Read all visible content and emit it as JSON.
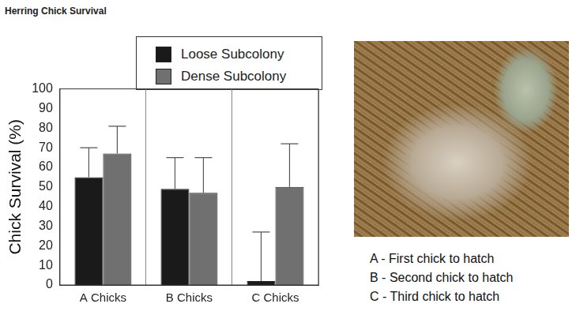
{
  "chart_data": {
    "type": "bar",
    "title": "Herring Chick Survival",
    "y_label": "Chick Survival (%)",
    "categories": [
      "A Chicks",
      "B Chicks",
      "C Chicks"
    ],
    "series": [
      {
        "name": "Loose Subcolony",
        "color": "#1a1a1a",
        "values": [
          55,
          49,
          2
        ],
        "errors": [
          15,
          16,
          25
        ]
      },
      {
        "name": "Dense Subcolony",
        "color": "#707070",
        "values": [
          67,
          47,
          50
        ],
        "errors": [
          14,
          18,
          22
        ]
      }
    ],
    "ylim": [
      0,
      100
    ],
    "yticks": [
      0,
      10,
      20,
      30,
      40,
      50,
      60,
      70,
      80,
      90,
      100
    ],
    "grid": false,
    "legend": "top"
  },
  "caption": [
    "A - First chick to hatch",
    "B - Second chick to hatch",
    "C - Third chick to hatch"
  ]
}
